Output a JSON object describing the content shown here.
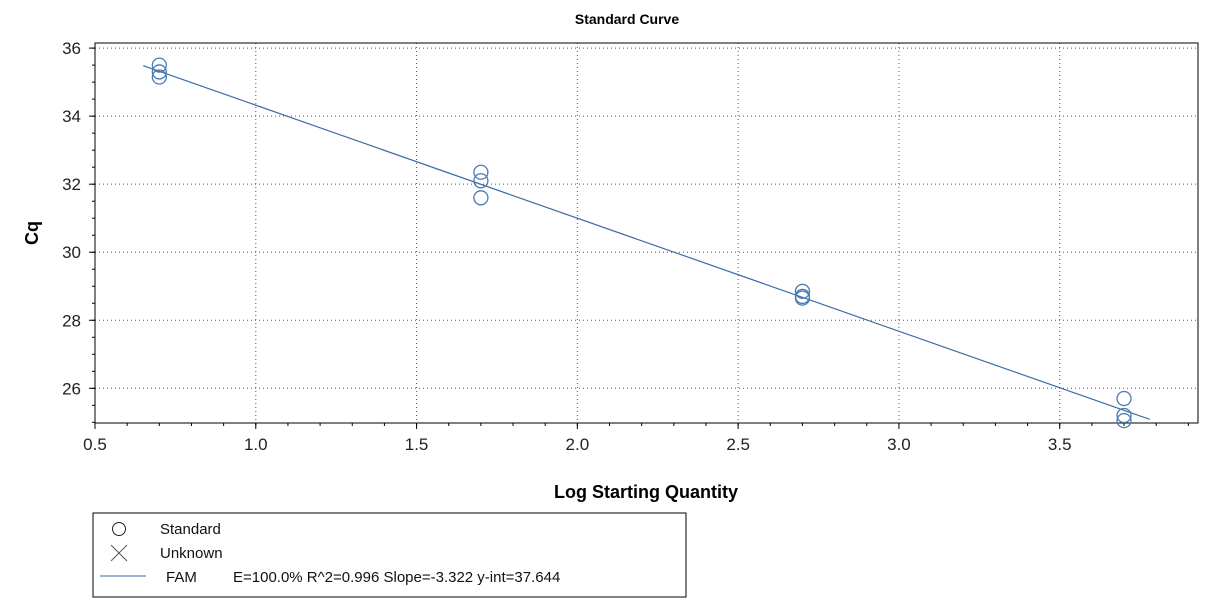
{
  "chart_data": {
    "type": "scatter",
    "title": "Standard Curve",
    "xlabel": "Log Starting Quantity",
    "ylabel": "Cq",
    "xlim": [
      0.5,
      3.93
    ],
    "ylim": [
      24.98,
      36.15
    ],
    "xticks": [
      0.5,
      1.0,
      1.5,
      2.0,
      2.5,
      3.0,
      3.5
    ],
    "xtick_labels": [
      "0.5",
      "1.0",
      "1.5",
      "2.0",
      "2.5",
      "3.0",
      "3.5"
    ],
    "yticks": [
      26,
      28,
      30,
      32,
      34,
      36
    ],
    "ytick_labels": [
      "26",
      "28",
      "30",
      "32",
      "34",
      "36"
    ],
    "grid": true,
    "series": [
      {
        "name": "Standard",
        "marker": "circle",
        "color": "#4a7ab5",
        "points": [
          {
            "x": 0.7,
            "y": 35.5
          },
          {
            "x": 0.7,
            "y": 35.3
          },
          {
            "x": 0.7,
            "y": 35.15
          },
          {
            "x": 1.7,
            "y": 32.35
          },
          {
            "x": 1.7,
            "y": 32.1
          },
          {
            "x": 1.7,
            "y": 31.6
          },
          {
            "x": 2.7,
            "y": 28.85
          },
          {
            "x": 2.7,
            "y": 28.7
          },
          {
            "x": 2.7,
            "y": 28.65
          },
          {
            "x": 3.7,
            "y": 25.7
          },
          {
            "x": 3.7,
            "y": 25.2
          },
          {
            "x": 3.7,
            "y": 25.05
          }
        ]
      },
      {
        "name": "Unknown",
        "marker": "x",
        "color": "#555555",
        "points": []
      }
    ],
    "fit_line": {
      "name": "FAM",
      "color": "#3a6ea5",
      "slope": -3.322,
      "intercept": 37.644,
      "x_range": [
        0.65,
        3.78
      ]
    },
    "legend": {
      "placement": "bottom-left",
      "items": [
        {
          "symbol": "circle",
          "label": "Standard"
        },
        {
          "symbol": "x",
          "label": "Unknown"
        },
        {
          "symbol": "line",
          "label": "FAM",
          "stats": "E=100.0% R^2=0.996 Slope=-3.322 y-int=37.644"
        }
      ]
    }
  }
}
